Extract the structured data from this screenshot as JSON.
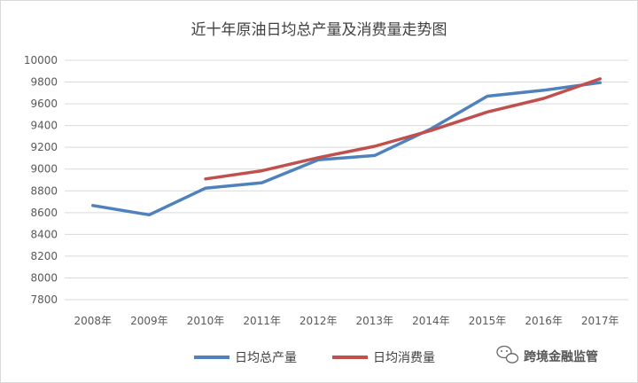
{
  "chart_data": {
    "type": "line",
    "title": "近十年原油日均总产量及消费量走势图",
    "categories": [
      "2008年",
      "2009年",
      "2010年",
      "2011年",
      "2012年",
      "2013年",
      "2014年",
      "2015年",
      "2016年",
      "2017年"
    ],
    "y_ticks": [
      "10000",
      "9800",
      "9600",
      "9400",
      "9200",
      "9000",
      "8800",
      "8600",
      "8400",
      "8200",
      "8000",
      "7800"
    ],
    "ylim": [
      7800,
      10000
    ],
    "grid": "horizontal",
    "legend_position": "bottom",
    "series": [
      {
        "name": "日均总产量",
        "color": "#4f81bd",
        "values": [
          8665,
          8580,
          8825,
          8875,
          9085,
          9125,
          9370,
          9670,
          9725,
          9795
        ]
      },
      {
        "name": "日均消费量",
        "color": "#c0504d",
        "values": [
          null,
          null,
          8910,
          8985,
          9105,
          9210,
          9355,
          9525,
          9650,
          9830
        ]
      }
    ]
  },
  "watermark": {
    "text": "跨境金融监管",
    "icon": "wechat-icon"
  }
}
